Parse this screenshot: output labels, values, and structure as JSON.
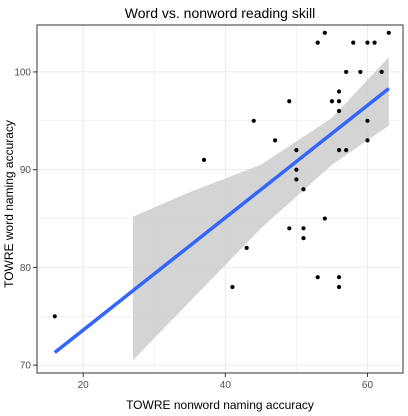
{
  "chart_data": {
    "type": "scatter",
    "title": "Word vs. nonword reading skill",
    "xlabel": "TOWRE nonword naming accuracy",
    "ylabel": "TOWRE word naming accuracy",
    "xlim": [
      13.5,
      65
    ],
    "ylim": [
      69.2,
      104.8
    ],
    "x_ticks": [
      20,
      40,
      60
    ],
    "y_ticks": [
      70,
      80,
      90,
      100
    ],
    "grid": true,
    "points": [
      {
        "x": 16,
        "y": 75
      },
      {
        "x": 37,
        "y": 91
      },
      {
        "x": 41,
        "y": 78
      },
      {
        "x": 43,
        "y": 82
      },
      {
        "x": 44,
        "y": 95
      },
      {
        "x": 47,
        "y": 93
      },
      {
        "x": 49,
        "y": 97
      },
      {
        "x": 49,
        "y": 84
      },
      {
        "x": 50,
        "y": 92
      },
      {
        "x": 50,
        "y": 90
      },
      {
        "x": 50,
        "y": 89
      },
      {
        "x": 51,
        "y": 88
      },
      {
        "x": 51,
        "y": 84
      },
      {
        "x": 51,
        "y": 83
      },
      {
        "x": 53,
        "y": 103
      },
      {
        "x": 53,
        "y": 79
      },
      {
        "x": 54,
        "y": 104
      },
      {
        "x": 54,
        "y": 85
      },
      {
        "x": 55,
        "y": 97
      },
      {
        "x": 56,
        "y": 98
      },
      {
        "x": 56,
        "y": 97
      },
      {
        "x": 56,
        "y": 96
      },
      {
        "x": 56,
        "y": 92
      },
      {
        "x": 56,
        "y": 79
      },
      {
        "x": 56,
        "y": 78
      },
      {
        "x": 57,
        "y": 100
      },
      {
        "x": 57,
        "y": 92
      },
      {
        "x": 58,
        "y": 103
      },
      {
        "x": 59,
        "y": 100
      },
      {
        "x": 60,
        "y": 103
      },
      {
        "x": 60,
        "y": 95
      },
      {
        "x": 60,
        "y": 93
      },
      {
        "x": 61,
        "y": 103
      },
      {
        "x": 62,
        "y": 100
      },
      {
        "x": 63,
        "y": 104
      }
    ],
    "fit_line": {
      "method": "linear regression",
      "color": "#3366ff",
      "x": [
        16,
        63
      ],
      "y": [
        71.3,
        98.3
      ]
    },
    "confidence_band": {
      "color": "#cccccc",
      "x": [
        27,
        35,
        45,
        55,
        63
      ],
      "lower": [
        70.5,
        76.5,
        84.0,
        90.5,
        94.5
      ],
      "upper": [
        85.2,
        87.7,
        90.5,
        95.3,
        101.5
      ]
    },
    "colors": {
      "panel_border": "#333333",
      "grid": "#ebebeb",
      "point": "#000000"
    }
  }
}
